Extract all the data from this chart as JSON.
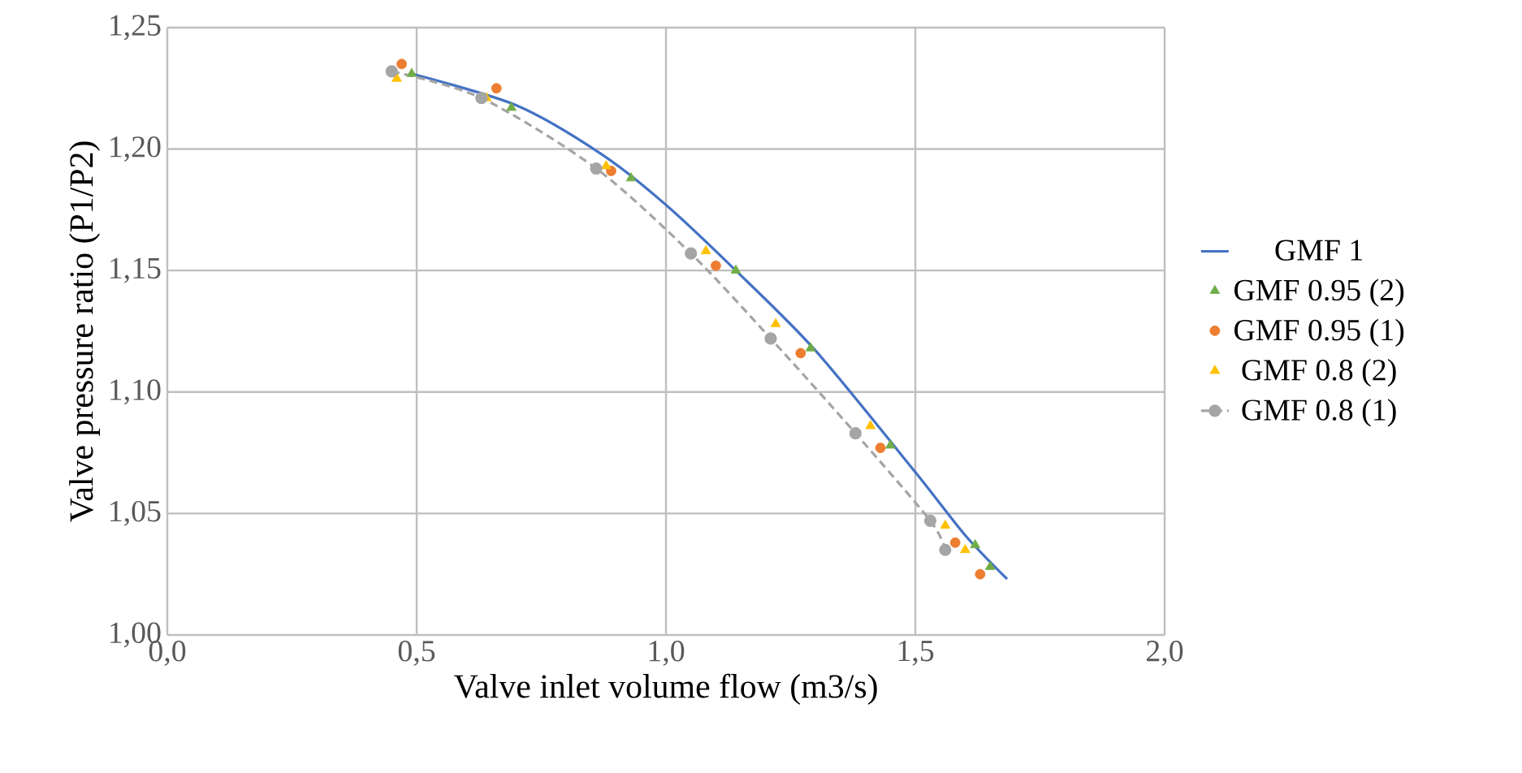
{
  "chart_data": {
    "type": "line",
    "xlabel": "Valve inlet volume flow (m3/s)",
    "ylabel": "Valve pressure ratio (P1/P2)",
    "xlim": [
      0,
      2
    ],
    "ylim": [
      1,
      1.25
    ],
    "xticks": [
      {
        "value": 0,
        "label": "0,0"
      },
      {
        "value": 0.5,
        "label": "0,5"
      },
      {
        "value": 1,
        "label": "1,0"
      },
      {
        "value": 1.5,
        "label": "1,5"
      },
      {
        "value": 2,
        "label": "2,0"
      }
    ],
    "yticks": [
      {
        "value": 1,
        "label": "1,00"
      },
      {
        "value": 1.05,
        "label": "1,05"
      },
      {
        "value": 1.1,
        "label": "1,10"
      },
      {
        "value": 1.15,
        "label": "1,15"
      },
      {
        "value": 1.2,
        "label": "1,20"
      },
      {
        "value": 1.25,
        "label": "1,25"
      }
    ],
    "grid": true,
    "legend": "right",
    "series": [
      {
        "name": "GMF 1",
        "color": "#4472c4",
        "marker": "none",
        "line_style": "solid",
        "x": [
          0.49,
          0.7,
          0.87,
          1.0,
          1.14,
          1.3,
          1.5,
          1.6,
          1.684
        ],
        "values": [
          1.231,
          1.218,
          1.198,
          1.177,
          1.15,
          1.117,
          1.067,
          1.041,
          1.023
        ]
      },
      {
        "name": "GMF 0.95 (2)",
        "type": "scatter",
        "color": "#70ad47",
        "marker": "triangle",
        "x": [
          0.49,
          0.69,
          0.93,
          1.14,
          1.29,
          1.45,
          1.62,
          1.65
        ],
        "values": [
          1.231,
          1.217,
          1.188,
          1.15,
          1.118,
          1.078,
          1.037,
          1.028
        ]
      },
      {
        "name": "GMF 0.95 (1)",
        "type": "scatter",
        "color": "#ed7d31",
        "marker": "circle",
        "x": [
          0.47,
          0.66,
          0.89,
          1.1,
          1.27,
          1.43,
          1.58,
          1.63
        ],
        "values": [
          1.235,
          1.225,
          1.191,
          1.152,
          1.116,
          1.077,
          1.038,
          1.025
        ]
      },
      {
        "name": "GMF 0.8 (2)",
        "type": "scatter",
        "color": "#ffc000",
        "marker": "triangle",
        "x": [
          0.46,
          0.64,
          0.88,
          1.08,
          1.22,
          1.41,
          1.56,
          1.6
        ],
        "values": [
          1.229,
          1.221,
          1.193,
          1.158,
          1.128,
          1.086,
          1.045,
          1.035
        ]
      },
      {
        "name": "GMF 0.8 (1)",
        "color": "#a5a5a5",
        "marker": "circle",
        "line_style": "dashed",
        "x": [
          0.45,
          0.63,
          0.86,
          1.05,
          1.21,
          1.38,
          1.53,
          1.56
        ],
        "values": [
          1.232,
          1.221,
          1.192,
          1.157,
          1.122,
          1.083,
          1.047,
          1.035
        ]
      }
    ]
  }
}
